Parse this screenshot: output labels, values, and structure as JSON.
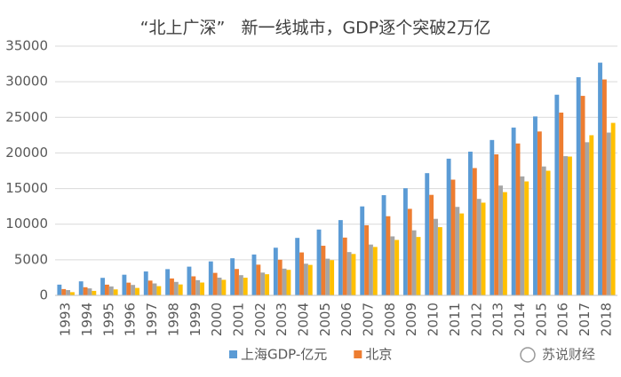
{
  "chart_data": {
    "type": "bar",
    "title": "“北上广深”   新一线城市，GDP逐个突破2万亿",
    "categories": [
      "1993",
      "1994",
      "1995",
      "1996",
      "1997",
      "1998",
      "1999",
      "2000",
      "2001",
      "2002",
      "2003",
      "2004",
      "2005",
      "2006",
      "2007",
      "2008",
      "2009",
      "2010",
      "2011",
      "2012",
      "2013",
      "2014",
      "2015",
      "2016",
      "2017",
      "2018"
    ],
    "series": [
      {
        "name": "上海GDP-亿元",
        "color": "#5b9bd5",
        "values": [
          1511,
          1971,
          2463,
          2903,
          3360,
          3688,
          4035,
          4771,
          5210,
          5741,
          6694,
          8073,
          9248,
          10572,
          12494,
          14070,
          15046,
          17166,
          19196,
          20182,
          21818,
          23568,
          25123,
          28179,
          30633,
          32680
        ]
      },
      {
        "name": "北京",
        "color": "#ed7d31",
        "values": [
          886,
          1145,
          1508,
          1789,
          2077,
          2377,
          2678,
          3162,
          3708,
          4315,
          5007,
          6033,
          6970,
          8118,
          9847,
          11115,
          12153,
          14114,
          16252,
          17879,
          19801,
          21331,
          23015,
          25669,
          28015,
          30320
        ]
      },
      {
        "color": "#a5a5a5",
        "values": [
          745,
          985,
          1259,
          1468,
          1679,
          1893,
          2139,
          2493,
          2842,
          3204,
          3758,
          4450,
          5154,
          6081,
          7140,
          8287,
          9138,
          10748,
          12423,
          13551,
          15420,
          16707,
          18100,
          19547,
          21503,
          22859
        ]
      },
      {
        "color": "#ffc000",
        "values": [
          453,
          634,
          842,
          1048,
          1297,
          1535,
          1804,
          2187,
          2482,
          2970,
          3586,
          4282,
          4951,
          5814,
          6801,
          7787,
          8201,
          9582,
          11506,
          13020,
          14500,
          16002,
          17503,
          19493,
          22490,
          24222
        ]
      }
    ],
    "ylim": [
      0,
      35000
    ],
    "yticks": [
      0,
      5000,
      10000,
      15000,
      20000,
      25000,
      30000,
      35000
    ],
    "grid": true,
    "legend": "bottom",
    "watermark": "苏说财经"
  }
}
